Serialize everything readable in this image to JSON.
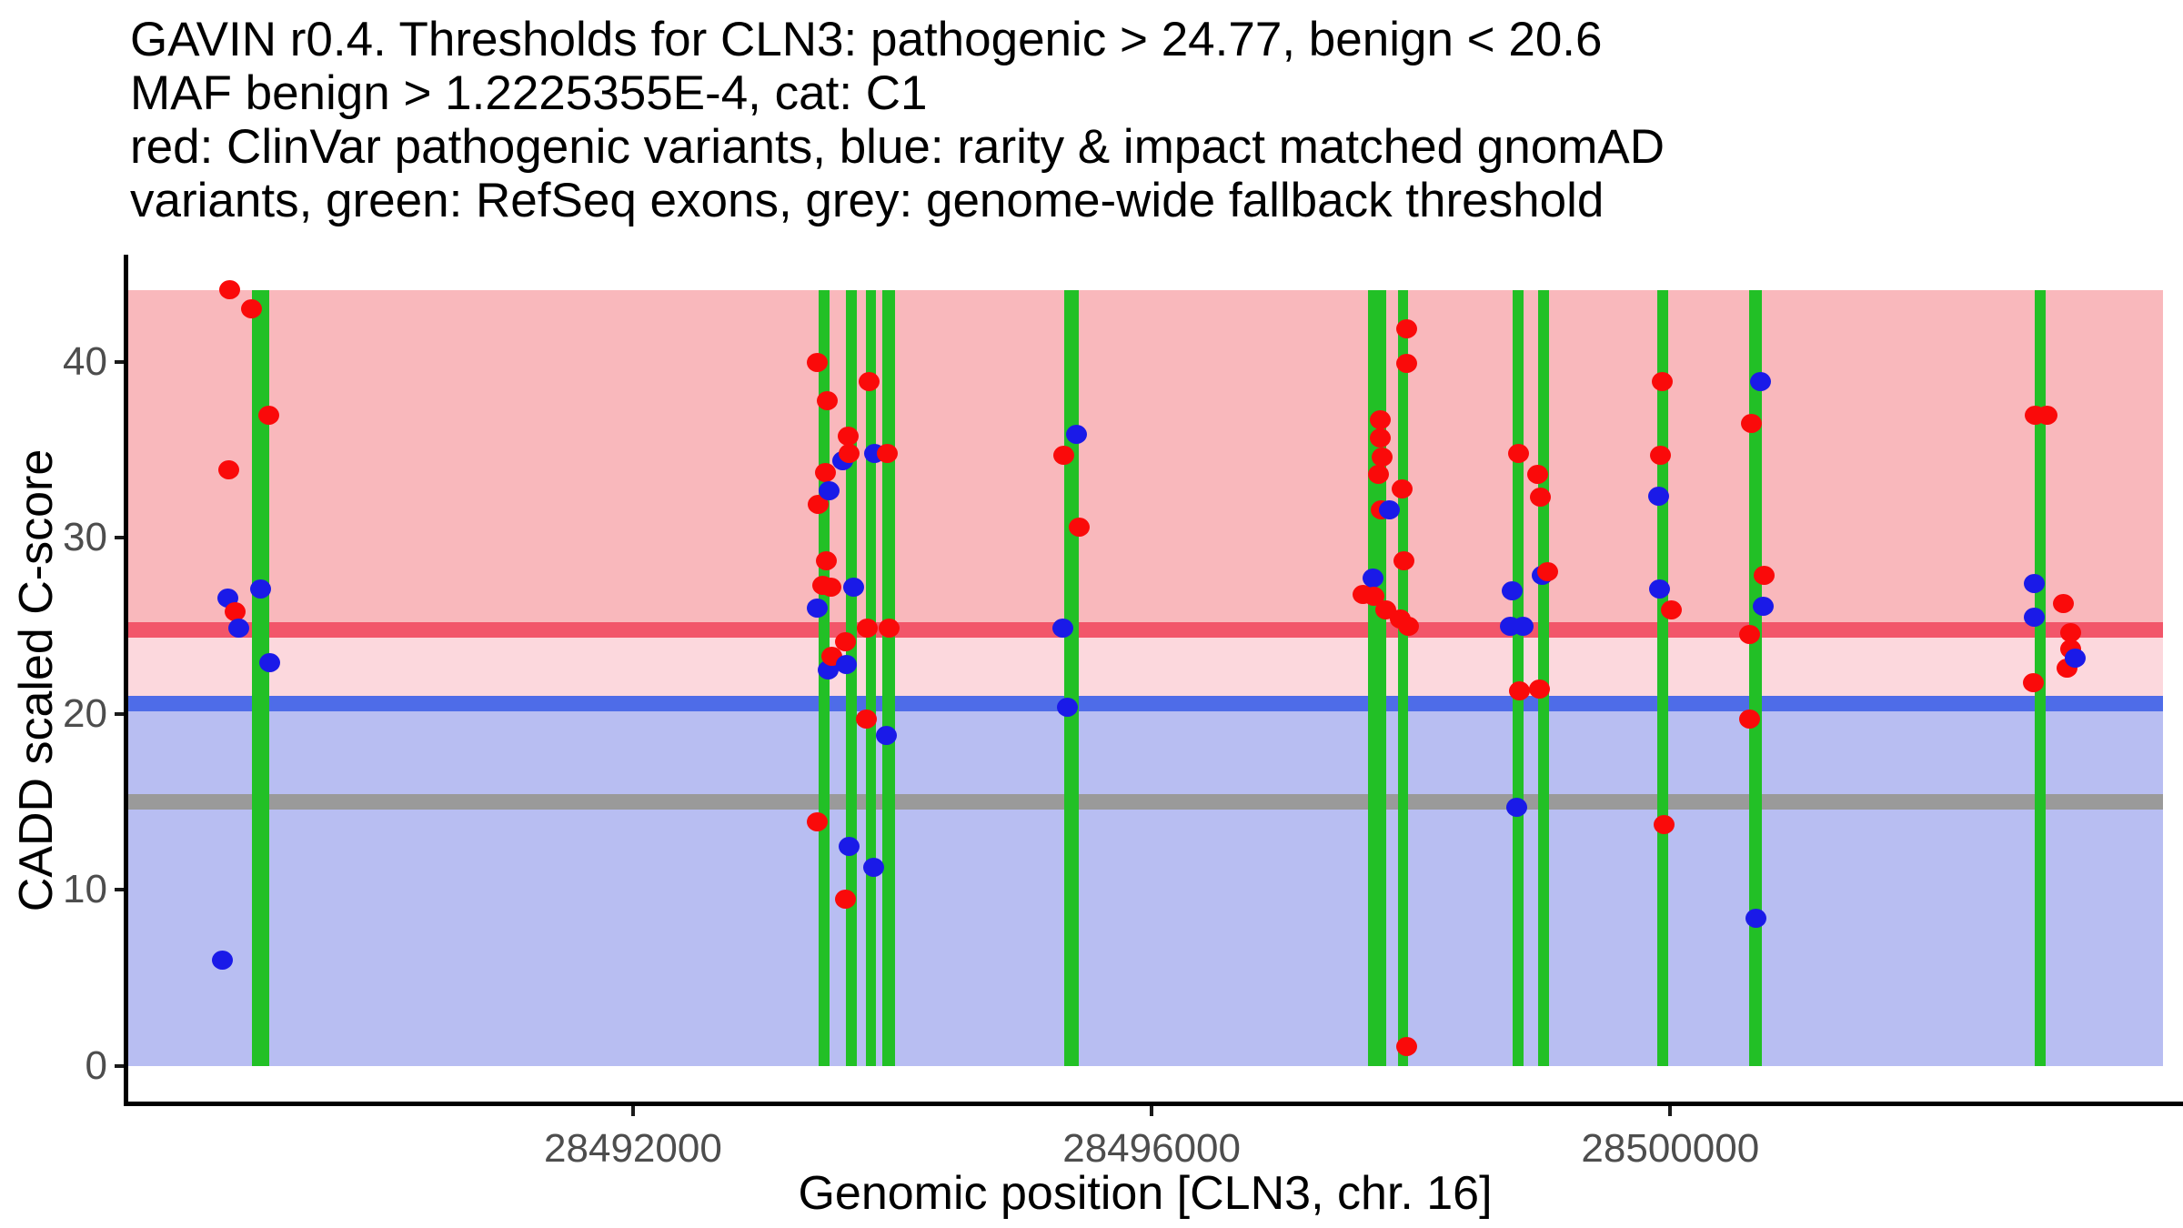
{
  "title": {
    "lines": [
      "GAVIN r0.4. Thresholds for CLN3: pathogenic > 24.77, benign < 20.6",
      "MAF benign > 1.2225355E-4, cat: C1",
      "red: ClinVar pathogenic variants, blue: rarity & impact matched gnomAD",
      "variants, green: RefSeq exons, grey: genome-wide fallback threshold"
    ]
  },
  "axes": {
    "y": {
      "label": "CADD scaled C-score",
      "tick_labels": [
        "0",
        "10",
        "20",
        "30",
        "40"
      ],
      "tick_values": [
        0,
        10,
        20,
        30,
        40
      ]
    },
    "x": {
      "label": "Genomic position [CLN3, chr. 16]",
      "tick_labels": [
        "28492000",
        "28496000",
        "28500000"
      ],
      "tick_values": [
        28492000,
        28496000,
        28500000
      ]
    }
  },
  "colors": {
    "clinvar_point": "#fa0a0a",
    "gnomad_point": "#1a1ae8",
    "exon": "#22c026",
    "band_pathogenic": "#f9b8bc",
    "band_intermediate": "#fcd8dd",
    "band_benign": "#b8bef2",
    "line_pathogenic": "#f2566a",
    "line_benign": "#4e6ce8",
    "line_fallback": "#9a9a9a",
    "axis": "#000000",
    "tick_text": "#4d4d4d"
  },
  "chart_data": {
    "type": "scatter",
    "title": "GAVIN r0.4. Thresholds for CLN3: pathogenic > 24.77, benign < 20.6 MAF benign > 1.2225355E-4, cat: C1",
    "xlabel": "Genomic position [CLN3, chr. 16]",
    "ylabel": "CADD scaled C-score",
    "xlim": [
      28488100,
      28503800
    ],
    "ylim": [
      -2.12,
      45.84
    ],
    "grid": false,
    "legend_position": "none",
    "band_top": 44.1,
    "thresholds": {
      "pathogenic": 24.77,
      "benign": 20.6,
      "genome_wide_fallback": 15
    },
    "maf_benign": "1.2225355E-4",
    "category": "C1",
    "series": [
      {
        "name": "ClinVar pathogenic variants",
        "color_key": "clinvar_point",
        "points": [
          [
            28488890,
            44.1
          ],
          [
            28489058,
            43.0
          ],
          [
            28489191,
            37.0
          ],
          [
            28488883,
            33.9
          ],
          [
            28488932,
            25.8
          ],
          [
            28493422,
            40.0
          ],
          [
            28493821,
            38.9
          ],
          [
            28493499,
            37.8
          ],
          [
            28493660,
            35.8
          ],
          [
            28493667,
            34.8
          ],
          [
            28493962,
            34.8
          ],
          [
            28493485,
            33.7
          ],
          [
            28493429,
            31.9
          ],
          [
            28493492,
            28.7
          ],
          [
            28493464,
            27.3
          ],
          [
            28493527,
            27.2
          ],
          [
            28493807,
            24.9
          ],
          [
            28493976,
            24.9
          ],
          [
            28493639,
            24.1
          ],
          [
            28493534,
            23.3
          ],
          [
            28493800,
            19.7
          ],
          [
            28493422,
            13.9
          ],
          [
            28493639,
            9.5
          ],
          [
            28495320,
            34.7
          ],
          [
            28495439,
            30.6
          ],
          [
            28497968,
            41.9
          ],
          [
            28497968,
            39.9
          ],
          [
            28497765,
            36.7
          ],
          [
            28497765,
            35.7
          ],
          [
            28497779,
            34.6
          ],
          [
            28497751,
            33.6
          ],
          [
            28497933,
            32.8
          ],
          [
            28497772,
            31.6
          ],
          [
            28497947,
            28.7
          ],
          [
            28497632,
            26.8
          ],
          [
            28497716,
            26.7
          ],
          [
            28497807,
            25.9
          ],
          [
            28497919,
            25.4
          ],
          [
            28497982,
            25.0
          ],
          [
            28497968,
            1.1
          ],
          [
            28498830,
            34.8
          ],
          [
            28498977,
            33.6
          ],
          [
            28498998,
            32.3
          ],
          [
            28499054,
            28.1
          ],
          [
            28498837,
            21.3
          ],
          [
            28498991,
            21.4
          ],
          [
            28499937,
            38.9
          ],
          [
            28499923,
            34.7
          ],
          [
            28500008,
            25.9
          ],
          [
            28499951,
            13.7
          ],
          [
            28500623,
            36.5
          ],
          [
            28500722,
            27.9
          ],
          [
            28500609,
            24.5
          ],
          [
            28500609,
            19.7
          ],
          [
            28502816,
            37.0
          ],
          [
            28502908,
            37.0
          ],
          [
            28503033,
            26.3
          ],
          [
            28503089,
            24.6
          ],
          [
            28503089,
            23.7
          ],
          [
            28503061,
            22.6
          ],
          [
            28502802,
            21.8
          ]
        ]
      },
      {
        "name": "rarity & impact matched gnomAD variants",
        "color_key": "gnomad_point",
        "points": [
          [
            28488876,
            26.6
          ],
          [
            28489128,
            27.1
          ],
          [
            28488960,
            24.9
          ],
          [
            28489198,
            22.9
          ],
          [
            28488834,
            6.0
          ],
          [
            28493864,
            34.8
          ],
          [
            28493618,
            34.4
          ],
          [
            28493513,
            32.7
          ],
          [
            28493702,
            27.2
          ],
          [
            28493422,
            26.0
          ],
          [
            28493506,
            22.5
          ],
          [
            28493646,
            22.8
          ],
          [
            28493955,
            18.8
          ],
          [
            28493667,
            12.5
          ],
          [
            28493856,
            11.3
          ],
          [
            28495418,
            35.9
          ],
          [
            28495313,
            24.9
          ],
          [
            28495350,
            20.4
          ],
          [
            28497835,
            31.6
          ],
          [
            28497709,
            27.7
          ],
          [
            28499012,
            27.9
          ],
          [
            28498781,
            27.0
          ],
          [
            28498767,
            25.0
          ],
          [
            28498865,
            25.0
          ],
          [
            28498816,
            14.7
          ],
          [
            28499909,
            32.4
          ],
          [
            28499915,
            27.1
          ],
          [
            28500694,
            38.9
          ],
          [
            28500715,
            26.1
          ],
          [
            28500658,
            8.4
          ],
          [
            28502809,
            27.4
          ],
          [
            28502809,
            25.5
          ],
          [
            28503124,
            23.2
          ]
        ]
      }
    ],
    "exons": {
      "name": "RefSeq exons",
      "color_key": "exon",
      "regions_center_width_bp": [
        [
          28489128,
          133
        ],
        [
          28493471,
          84
        ],
        [
          28493681,
          84
        ],
        [
          28493835,
          84
        ],
        [
          28493975,
          98
        ],
        [
          28495383,
          112
        ],
        [
          28497737,
          140
        ],
        [
          28497940,
          77
        ],
        [
          28498823,
          84
        ],
        [
          28499026,
          84
        ],
        [
          28499944,
          84
        ],
        [
          28500658,
          98
        ],
        [
          28502851,
          84
        ]
      ]
    }
  }
}
